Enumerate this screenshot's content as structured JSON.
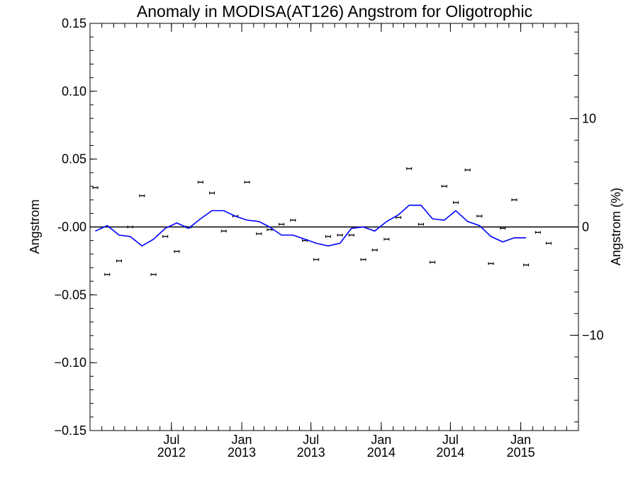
{
  "chart_data": {
    "type": "scatter",
    "title": "Anomaly in MODISA(AT126) Angstrom for Oligotrophic",
    "ylabel": "Angstrom",
    "ylabel_right": "Angstrom (%)",
    "xlabel": "",
    "ylim": [
      -0.15,
      0.15
    ],
    "ylim_right": [
      -18.8,
      18.8
    ],
    "xlim_months": [
      "2011-12",
      "2015-06"
    ],
    "grid": false,
    "yticks": [
      {
        "value": 0.15,
        "label": "0.15"
      },
      {
        "value": 0.1,
        "label": "0.10"
      },
      {
        "value": 0.05,
        "label": "0.05"
      },
      {
        "value": 0.0,
        "label": "-0.00"
      },
      {
        "value": -0.05,
        "label": "−0.05"
      },
      {
        "value": -0.1,
        "label": "−0.10"
      },
      {
        "value": -0.15,
        "label": "−0.15"
      }
    ],
    "yticks_right": [
      {
        "value": 10,
        "label": "10"
      },
      {
        "value": 0,
        "label": "0"
      },
      {
        "value": -10,
        "label": "−10"
      }
    ],
    "xticks": [
      {
        "month": "2012-07",
        "line1": "Jul",
        "line2": "2012"
      },
      {
        "month": "2013-01",
        "line1": "Jan",
        "line2": "2013"
      },
      {
        "month": "2013-07",
        "line1": "Jul",
        "line2": "2013"
      },
      {
        "month": "2014-01",
        "line1": "Jan",
        "line2": "2014"
      },
      {
        "month": "2014-07",
        "line1": "Jul",
        "line2": "2014"
      },
      {
        "month": "2015-01",
        "line1": "Jan",
        "line2": "2015"
      }
    ],
    "series": [
      {
        "kind": "points",
        "color": "#000000",
        "error_bars": true,
        "x": [
          "2011-12-15",
          "2012-01-15",
          "2012-02-15",
          "2012-03-15",
          "2012-04-15",
          "2012-05-15",
          "2012-06-15",
          "2012-07-15",
          "2012-08-15",
          "2012-09-15",
          "2012-10-15",
          "2012-11-15",
          "2012-12-15",
          "2013-01-15",
          "2013-02-15",
          "2013-03-15",
          "2013-04-15",
          "2013-05-15",
          "2013-06-15",
          "2013-07-15",
          "2013-08-15",
          "2013-09-15",
          "2013-10-15",
          "2013-11-15",
          "2013-12-15",
          "2014-01-15",
          "2014-02-15",
          "2014-03-15",
          "2014-04-15",
          "2014-05-15",
          "2014-06-15",
          "2014-07-15",
          "2014-08-15",
          "2014-09-15",
          "2014-10-15",
          "2014-11-15",
          "2014-12-15",
          "2015-01-15",
          "2015-02-15",
          "2015-03-15",
          "2015-04-15",
          "2015-05-15"
        ],
        "y": [
          0.029,
          -0.035,
          -0.025,
          0.0,
          0.023,
          -0.035,
          -0.007,
          -0.018,
          0.0,
          0.033,
          0.025,
          -0.003,
          0.008,
          0.033,
          -0.005,
          -0.002,
          0.002,
          0.005,
          -0.01,
          -0.024,
          -0.007,
          -0.006,
          -0.006,
          -0.024,
          -0.017,
          -0.009,
          0.007,
          0.043,
          0.002,
          -0.026,
          0.03,
          0.018,
          0.042,
          0.008,
          -0.027,
          -0.001,
          0.02,
          -0.028,
          -0.004,
          -0.012,
          null,
          null
        ]
      },
      {
        "kind": "line",
        "color": "#0000ff",
        "x": [
          "2011-12-15",
          "2012-01-15",
          "2012-02-15",
          "2012-03-15",
          "2012-04-15",
          "2012-05-15",
          "2012-06-15",
          "2012-07-15",
          "2012-08-15",
          "2012-09-15",
          "2012-10-15",
          "2012-11-15",
          "2012-12-15",
          "2013-01-15",
          "2013-02-15",
          "2013-03-15",
          "2013-04-15",
          "2013-05-15",
          "2013-06-15",
          "2013-07-15",
          "2013-08-15",
          "2013-09-15",
          "2013-10-15",
          "2013-11-15",
          "2013-12-15",
          "2014-01-15",
          "2014-02-15",
          "2014-03-15",
          "2014-04-15",
          "2014-05-15",
          "2014-06-15",
          "2014-07-15",
          "2014-08-15",
          "2014-09-15",
          "2014-10-15",
          "2014-11-15",
          "2014-12-15",
          "2015-01-15",
          "2015-02-15",
          "2015-03-15",
          "2015-04-15",
          "2015-05-15"
        ],
        "y": [
          -0.003,
          0.001,
          -0.006,
          -0.007,
          -0.014,
          -0.009,
          -0.001,
          0.003,
          -0.001,
          0.006,
          0.012,
          0.012,
          0.008,
          0.005,
          0.004,
          0.0,
          -0.006,
          -0.006,
          -0.009,
          -0.012,
          -0.014,
          -0.012,
          -0.001,
          0.0,
          -0.003,
          0.004,
          0.009,
          0.016,
          0.016,
          0.006,
          0.005,
          0.012,
          0.004,
          0.001,
          -0.007,
          -0.011,
          -0.008,
          -0.008,
          null,
          null,
          null,
          null
        ]
      }
    ]
  }
}
